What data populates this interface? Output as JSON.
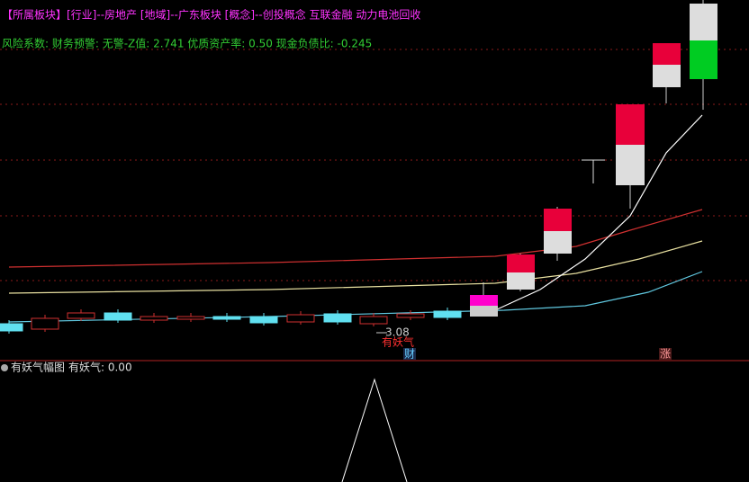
{
  "header": {
    "sector_tag": "【所属板块】",
    "sector_text": "[行业]--房地产 [地域]--广东板块 [概念]--创投概念 互联金融 动力电池回收",
    "risk_line": "风险系数: 财务预警: 无警-Z值: 2.741 优质资产率: 0.50 现金负债比: -0.245"
  },
  "annotations": {
    "price_marker": "3.08",
    "signal": "有妖气",
    "finance_badge": "财",
    "rise_badge": "涨"
  },
  "indicator": {
    "title": "有妖气幅图",
    "value_label": "有妖气: 0.00"
  }
}
